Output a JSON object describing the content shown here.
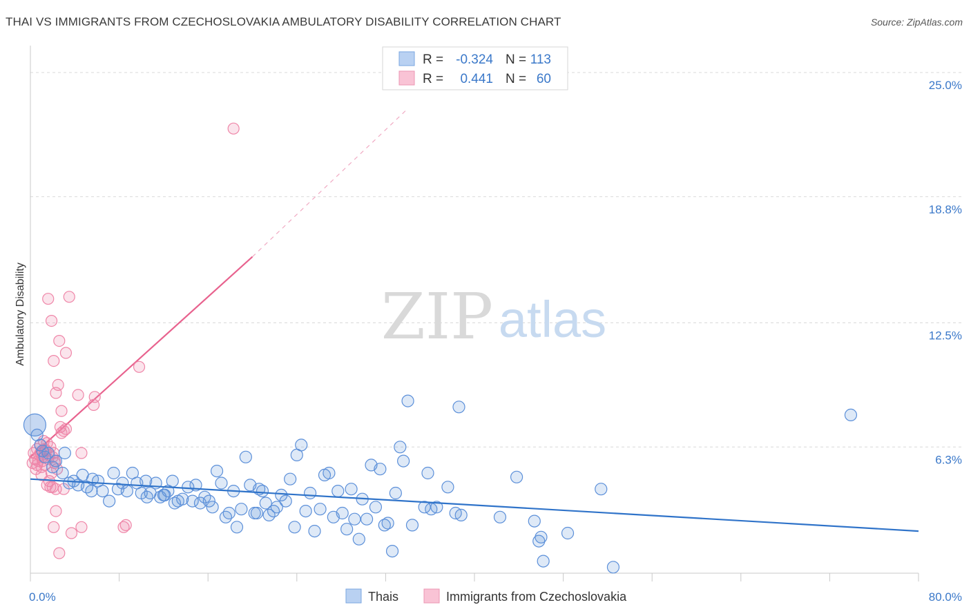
{
  "header": {
    "title": "THAI VS IMMIGRANTS FROM CZECHOSLOVAKIA AMBULATORY DISABILITY CORRELATION CHART",
    "source": "Source: ZipAtlas.com"
  },
  "watermark": {
    "zip": "ZIP",
    "atlas": "atlas"
  },
  "colors": {
    "thai": "#5b8fd9",
    "thai_line": "#2f73c9",
    "czech": "#ef86a8",
    "czech_line": "#e8628e",
    "tick_label": "#3a78c9",
    "grid": "#d8d8d8"
  },
  "legend_top": [
    {
      "r_label": "R = ",
      "r_value": "-0.324",
      "n_label": "N = ",
      "n_value": "113"
    },
    {
      "r_label": "R = ",
      "r_value": "0.441",
      "n_label": "N = ",
      "n_value": "60"
    }
  ],
  "chart_data": {
    "type": "scatter",
    "title": "THAI VS IMMIGRANTS FROM CZECHOSLOVAKIA AMBULATORY DISABILITY CORRELATION CHART",
    "xlabel": "",
    "ylabel": "Ambulatory Disability",
    "xlim": [
      0,
      80
    ],
    "ylim": [
      0,
      26
    ],
    "x_tick_labels": [
      {
        "value": 0,
        "label": "0.0%"
      },
      {
        "value": 80,
        "label": "80.0%"
      }
    ],
    "y_ticks": [
      {
        "value": 6.3,
        "label": "6.3%"
      },
      {
        "value": 12.5,
        "label": "12.5%"
      },
      {
        "value": 18.8,
        "label": "18.8%"
      },
      {
        "value": 25.0,
        "label": "25.0%"
      }
    ],
    "grid": true,
    "legend_position": "top-center and bottom",
    "series": [
      {
        "name": "Thais",
        "r": -0.324,
        "n": 113,
        "trend": {
          "x": [
            0,
            80
          ],
          "y": [
            4.7,
            2.1
          ]
        },
        "points": [
          [
            0.4,
            7.4
          ],
          [
            0.6,
            6.9
          ],
          [
            0.9,
            6.4
          ],
          [
            1.1,
            6.1
          ],
          [
            1.3,
            5.8
          ],
          [
            1.6,
            6.0
          ],
          [
            2.0,
            5.3
          ],
          [
            2.3,
            5.6
          ],
          [
            2.9,
            5.0
          ],
          [
            3.1,
            6.0
          ],
          [
            3.5,
            4.5
          ],
          [
            3.9,
            4.6
          ],
          [
            4.3,
            4.4
          ],
          [
            4.7,
            4.9
          ],
          [
            5.1,
            4.3
          ],
          [
            5.5,
            4.1
          ],
          [
            6.1,
            4.6
          ],
          [
            6.5,
            4.1
          ],
          [
            7.1,
            3.6
          ],
          [
            7.5,
            5.0
          ],
          [
            7.9,
            4.2
          ],
          [
            8.3,
            4.5
          ],
          [
            8.7,
            4.1
          ],
          [
            9.2,
            5.0
          ],
          [
            9.6,
            4.5
          ],
          [
            10.0,
            4.0
          ],
          [
            10.4,
            4.6
          ],
          [
            10.8,
            4.0
          ],
          [
            11.3,
            4.5
          ],
          [
            11.7,
            3.8
          ],
          [
            12.1,
            3.9
          ],
          [
            12.4,
            4.1
          ],
          [
            12.8,
            4.6
          ],
          [
            13.3,
            3.6
          ],
          [
            13.7,
            3.7
          ],
          [
            14.2,
            4.3
          ],
          [
            14.6,
            3.6
          ],
          [
            14.9,
            4.4
          ],
          [
            15.3,
            3.5
          ],
          [
            15.7,
            3.8
          ],
          [
            16.1,
            3.6
          ],
          [
            16.4,
            3.3
          ],
          [
            16.8,
            5.1
          ],
          [
            17.2,
            4.5
          ],
          [
            17.6,
            2.8
          ],
          [
            17.9,
            3.0
          ],
          [
            18.3,
            4.1
          ],
          [
            18.6,
            2.3
          ],
          [
            19.0,
            3.2
          ],
          [
            19.4,
            5.8
          ],
          [
            19.8,
            4.4
          ],
          [
            20.2,
            3.0
          ],
          [
            20.6,
            4.2
          ],
          [
            20.9,
            4.1
          ],
          [
            21.2,
            3.5
          ],
          [
            21.5,
            2.9
          ],
          [
            21.9,
            3.1
          ],
          [
            22.2,
            3.3
          ],
          [
            22.6,
            3.9
          ],
          [
            23.0,
            3.6
          ],
          [
            23.4,
            4.7
          ],
          [
            23.8,
            2.3
          ],
          [
            24.0,
            5.9
          ],
          [
            24.4,
            6.4
          ],
          [
            24.8,
            3.1
          ],
          [
            25.2,
            4.0
          ],
          [
            25.6,
            2.1
          ],
          [
            26.1,
            3.2
          ],
          [
            26.5,
            4.9
          ],
          [
            26.9,
            5.0
          ],
          [
            27.3,
            2.8
          ],
          [
            27.7,
            4.1
          ],
          [
            28.1,
            3.0
          ],
          [
            28.5,
            2.2
          ],
          [
            28.9,
            4.2
          ],
          [
            29.2,
            2.7
          ],
          [
            29.6,
            1.7
          ],
          [
            29.9,
            3.7
          ],
          [
            30.3,
            2.7
          ],
          [
            30.7,
            5.4
          ],
          [
            31.1,
            3.3
          ],
          [
            31.5,
            5.2
          ],
          [
            31.9,
            2.4
          ],
          [
            32.2,
            2.5
          ],
          [
            32.6,
            1.1
          ],
          [
            32.9,
            4.0
          ],
          [
            33.3,
            6.3
          ],
          [
            33.6,
            5.6
          ],
          [
            34.0,
            8.6
          ],
          [
            34.4,
            2.4
          ],
          [
            35.5,
            3.3
          ],
          [
            35.8,
            5.0
          ],
          [
            36.1,
            3.2
          ],
          [
            36.6,
            3.3
          ],
          [
            37.6,
            4.3
          ],
          [
            38.3,
            3.0
          ],
          [
            38.6,
            8.3
          ],
          [
            38.8,
            2.9
          ],
          [
            42.3,
            2.8
          ],
          [
            43.8,
            4.8
          ],
          [
            45.4,
            2.6
          ],
          [
            45.8,
            1.6
          ],
          [
            46.0,
            1.8
          ],
          [
            46.2,
            0.6
          ],
          [
            48.4,
            2.0
          ],
          [
            51.4,
            4.2
          ],
          [
            52.5,
            0.3
          ],
          [
            73.9,
            7.9
          ],
          [
            5.6,
            4.7
          ],
          [
            10.5,
            3.8
          ],
          [
            12.0,
            3.9
          ],
          [
            13.0,
            3.5
          ],
          [
            20.4,
            3.0
          ]
        ]
      },
      {
        "name": "Immigrants from Czechoslovakia",
        "r": 0.441,
        "n": 60,
        "trend_solid": {
          "x": [
            0,
            20
          ],
          "y": [
            5.8,
            15.8
          ]
        },
        "trend_dashed": {
          "x": [
            20,
            34
          ],
          "y": [
            15.8,
            23.2
          ]
        },
        "points": [
          [
            0.2,
            5.5
          ],
          [
            0.3,
            6.0
          ],
          [
            0.4,
            5.7
          ],
          [
            0.5,
            5.2
          ],
          [
            0.6,
            6.2
          ],
          [
            0.7,
            5.6
          ],
          [
            0.8,
            5.9
          ],
          [
            0.9,
            6.4
          ],
          [
            1.0,
            5.3
          ],
          [
            1.1,
            5.8
          ],
          [
            1.2,
            6.6
          ],
          [
            1.3,
            5.4
          ],
          [
            1.4,
            6.1
          ],
          [
            1.5,
            4.4
          ],
          [
            1.6,
            5.7
          ],
          [
            1.7,
            4.6
          ],
          [
            1.8,
            6.3
          ],
          [
            1.9,
            5.0
          ],
          [
            2.0,
            4.3
          ],
          [
            2.1,
            6.0
          ],
          [
            2.2,
            5.5
          ],
          [
            2.3,
            4.2
          ],
          [
            2.4,
            5.2
          ],
          [
            1.6,
            13.7
          ],
          [
            1.9,
            12.6
          ],
          [
            2.1,
            10.6
          ],
          [
            2.3,
            9.0
          ],
          [
            2.5,
            9.4
          ],
          [
            2.6,
            11.6
          ],
          [
            2.8,
            8.1
          ],
          [
            2.7,
            7.3
          ],
          [
            2.8,
            7.0
          ],
          [
            3.0,
            7.1
          ],
          [
            3.0,
            4.2
          ],
          [
            3.5,
            13.8
          ],
          [
            3.2,
            11.0
          ],
          [
            3.2,
            7.2
          ],
          [
            4.3,
            8.9
          ],
          [
            4.6,
            6.0
          ],
          [
            4.6,
            2.3
          ],
          [
            5.7,
            8.4
          ],
          [
            5.8,
            8.8
          ],
          [
            8.4,
            2.3
          ],
          [
            8.6,
            2.4
          ],
          [
            9.8,
            10.3
          ],
          [
            18.3,
            22.2
          ],
          [
            2.1,
            2.3
          ],
          [
            2.3,
            3.1
          ],
          [
            2.6,
            1.0
          ],
          [
            3.7,
            2.0
          ],
          [
            1.1,
            5.6
          ],
          [
            1.3,
            6.2
          ],
          [
            0.9,
            6.0
          ],
          [
            1.7,
            5.9
          ],
          [
            1.5,
            6.5
          ],
          [
            0.6,
            5.4
          ],
          [
            1.0,
            4.9
          ],
          [
            2.0,
            5.8
          ],
          [
            1.8,
            4.3
          ],
          [
            2.2,
            5.6
          ]
        ]
      }
    ]
  }
}
